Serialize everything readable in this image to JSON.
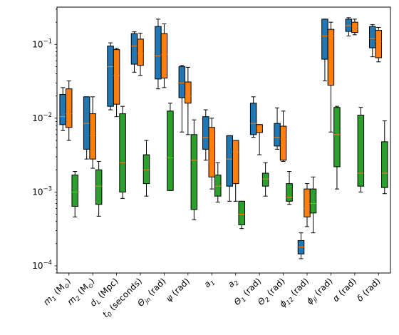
{
  "chart_data": {
    "type": "boxplot",
    "title": "",
    "xlabel": "",
    "ylabel": "",
    "yscale": "log",
    "ylim": [
      8e-05,
      0.32
    ],
    "yticks": [
      {
        "value": 0.0001,
        "base": "10",
        "exp": "−4"
      },
      {
        "value": 0.001,
        "base": "10",
        "exp": "−3"
      },
      {
        "value": 0.01,
        "base": "10",
        "exp": "−2"
      },
      {
        "value": 0.1,
        "base": "10",
        "exp": "−1"
      }
    ],
    "categories": [
      {
        "main": "m",
        "sub": "1",
        "unit": " (M",
        "unit_sub": "⊙",
        "unit_end": ")"
      },
      {
        "main": "m",
        "sub": "2",
        "unit": " (M",
        "unit_sub": "⊙",
        "unit_end": ")"
      },
      {
        "main": "d",
        "sub": "L",
        "unit": " (Mpc)",
        "unit_sub": "",
        "unit_end": ""
      },
      {
        "main": "t",
        "sub": "0",
        "unit": " (seconds)",
        "unit_sub": "",
        "unit_end": ""
      },
      {
        "main": "Θ",
        "sub": "jn",
        "unit": " (rad)",
        "unit_sub": "",
        "unit_end": ""
      },
      {
        "main": "ψ",
        "sub": "",
        "unit": " (rad)",
        "unit_sub": "",
        "unit_end": ""
      },
      {
        "main": "a",
        "sub": "1",
        "unit": "",
        "unit_sub": "",
        "unit_end": ""
      },
      {
        "main": "a",
        "sub": "2",
        "unit": "",
        "unit_sub": "",
        "unit_end": ""
      },
      {
        "main": "Θ",
        "sub": "1",
        "unit": " (rad)",
        "unit_sub": "",
        "unit_end": ""
      },
      {
        "main": "Θ",
        "sub": "2",
        "unit": " (rad)",
        "unit_sub": "",
        "unit_end": ""
      },
      {
        "main": "ϕ",
        "sub": "12",
        "unit": " (rad)",
        "unit_sub": "",
        "unit_end": ""
      },
      {
        "main": "ϕ",
        "sub": "jl",
        "unit": " (rad)",
        "unit_sub": "",
        "unit_end": ""
      },
      {
        "main": "α",
        "sub": "",
        "unit": " (rad)",
        "unit_sub": "",
        "unit_end": ""
      },
      {
        "main": "δ",
        "sub": "",
        "unit": " (rad)",
        "unit_sub": "",
        "unit_end": ""
      }
    ],
    "series": [
      {
        "color": "#1f77b4",
        "boxes": [
          [
            0.0068,
            0.0082,
            0.0105,
            0.021,
            0.026
          ],
          [
            0.0028,
            0.0038,
            0.0085,
            0.0195,
            0.0195
          ],
          [
            0.013,
            0.0145,
            0.05,
            0.095,
            0.105
          ],
          [
            0.042,
            0.054,
            0.095,
            0.14,
            0.148
          ],
          [
            0.025,
            0.034,
            0.07,
            0.175,
            0.22
          ],
          [
            0.0065,
            0.019,
            0.03,
            0.05,
            0.052
          ],
          [
            0.0027,
            0.0038,
            0.0055,
            0.0105,
            0.013
          ],
          [
            0.00075,
            0.0012,
            0.0028,
            0.0058,
            0.0058
          ],
          [
            0.0055,
            0.006,
            0.0085,
            0.016,
            0.0195
          ],
          [
            0.0038,
            0.0042,
            0.0055,
            0.0085,
            0.0138
          ],
          [
            0.000125,
            0.000145,
            0.00018,
            0.00022,
            0.00028
          ],
          [
            0.032,
            0.063,
            0.13,
            0.22,
            0.22
          ],
          [
            0.13,
            0.15,
            0.18,
            0.22,
            0.23
          ],
          [
            0.068,
            0.09,
            0.12,
            0.175,
            0.185
          ]
        ]
      },
      {
        "color": "#ff7f0e",
        "boxes": [
          [
            0.005,
            0.0075,
            0.0115,
            0.025,
            0.032
          ],
          [
            0.0021,
            0.0028,
            0.0058,
            0.0115,
            0.0195
          ],
          [
            0.0105,
            0.0155,
            0.038,
            0.085,
            0.088
          ],
          [
            0.038,
            0.052,
            0.075,
            0.118,
            0.142
          ],
          [
            0.026,
            0.035,
            0.073,
            0.14,
            0.19
          ],
          [
            0.006,
            0.016,
            0.02,
            0.031,
            0.049
          ],
          [
            0.0011,
            0.0016,
            0.0026,
            0.0075,
            0.01
          ],
          [
            0.00075,
            0.0013,
            0.0035,
            0.005,
            0.005
          ],
          [
            0.0032,
            0.0064,
            0.0073,
            0.0082,
            0.0082
          ],
          [
            0.0026,
            0.0027,
            0.0052,
            0.0078,
            0.0125
          ],
          [
            0.00034,
            0.00046,
            0.0006,
            0.0011,
            0.0013
          ],
          [
            0.0065,
            0.028,
            0.13,
            0.16,
            0.2
          ],
          [
            0.135,
            0.145,
            0.175,
            0.2,
            0.22
          ],
          [
            0.058,
            0.066,
            0.11,
            0.155,
            0.17
          ]
        ]
      },
      {
        "color": "#2ca02c",
        "boxes": [
          [
            0.00046,
            0.00064,
            0.001,
            0.0017,
            0.0019
          ],
          [
            0.00047,
            0.00068,
            0.0012,
            0.002,
            0.0026
          ],
          [
            0.00082,
            0.001,
            0.0025,
            0.0115,
            0.0145
          ],
          [
            0.00088,
            0.0013,
            0.002,
            0.0032,
            0.005
          ],
          [
            0.00105,
            0.00105,
            0.0029,
            0.0125,
            0.016
          ],
          [
            0.00042,
            0.00058,
            0.0027,
            0.006,
            0.0095
          ],
          [
            0.00073,
            0.00088,
            0.0012,
            0.0017,
            0.0025
          ],
          [
            0.00032,
            0.00036,
            0.0005,
            0.00075,
            0.00075
          ],
          [
            0.00088,
            0.0012,
            0.0015,
            0.0018,
            0.0025
          ],
          [
            0.00068,
            0.00075,
            0.00085,
            0.0013,
            0.0019
          ],
          [
            0.00028,
            0.00052,
            0.0007,
            0.0011,
            0.0016
          ],
          [
            0.0011,
            0.0022,
            0.006,
            0.014,
            0.0145
          ],
          [
            0.001,
            0.0012,
            0.0018,
            0.011,
            0.014
          ],
          [
            0.00095,
            0.00115,
            0.0018,
            0.0048,
            0.0092
          ]
        ]
      }
    ]
  }
}
